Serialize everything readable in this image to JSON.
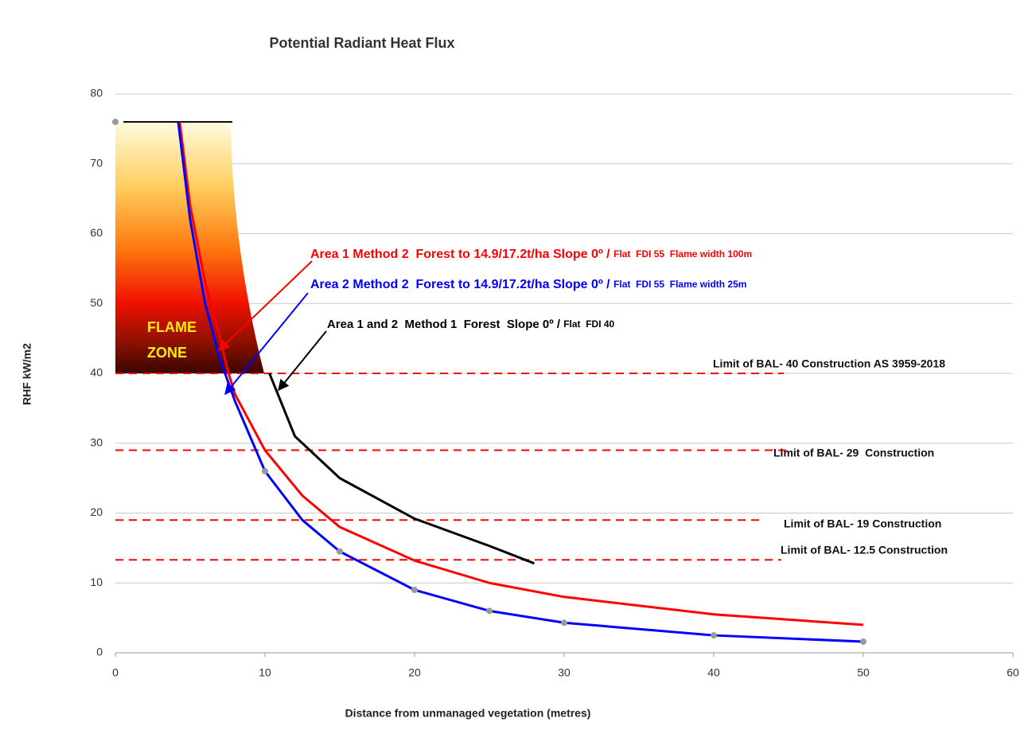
{
  "chart_data": {
    "type": "line",
    "title": "Potential Radiant Heat Flux",
    "x_label": "Distance from unmanaged vegetation (metres)",
    "y_label": "RHF kW/m2",
    "xlim": [
      0,
      60
    ],
    "xticks": [
      0,
      10,
      20,
      30,
      40,
      50,
      60
    ],
    "ylim": [
      0,
      80
    ],
    "yticks": [
      0,
      10,
      20,
      30,
      40,
      50,
      60,
      70,
      80
    ],
    "grid": true,
    "series": [
      {
        "color": "#ff0000",
        "show_line": true,
        "x": [
          4.3,
          5,
          6,
          7,
          7.5,
          8,
          10,
          12.5,
          15,
          20,
          25,
          30,
          40,
          50
        ],
        "values": [
          76,
          64,
          53,
          45,
          40.5,
          37,
          29,
          22.5,
          18,
          13.2,
          10,
          8,
          5.5,
          4
        ]
      },
      {
        "color": "#0000ff",
        "show_line": true,
        "x": [
          4.2,
          5,
          6,
          7,
          8,
          10,
          12.5,
          15,
          20,
          25,
          30,
          40,
          50
        ],
        "values": [
          76,
          62,
          50,
          42,
          36,
          26,
          19,
          14.5,
          9,
          6,
          4.3,
          2.5,
          1.6
        ]
      },
      {
        "color": "#000000",
        "show_line": true,
        "x": [
          10.3,
          12,
          15,
          20,
          25,
          28
        ],
        "values": [
          40,
          31,
          25,
          19.2,
          15.3,
          12.8
        ]
      },
      {
        "color": "#999999",
        "show_line": false,
        "x": [
          0,
          10,
          15,
          20,
          25,
          30,
          40,
          50
        ],
        "values": [
          76,
          26,
          14.5,
          9,
          6,
          4.3,
          2.5,
          1.6
        ]
      }
    ],
    "flame_zone": {
      "label_lines": [
        "FLAME",
        "ZONE"
      ],
      "top": 76,
      "bottom": 40
    },
    "reference_lines": [
      {
        "value": 40,
        "label": "Limit of BAL- 40 Construction AS 3959-2018"
      },
      {
        "value": 29,
        "label": "Limit of BAL- 29  Construction"
      },
      {
        "value": 19,
        "label": "Limit of BAL- 19 Construction"
      },
      {
        "value": 13.3,
        "label": "Limit of BAL- 12.5 Construction"
      }
    ],
    "annotations": [
      {
        "text": "Area 1 Method 2  Forest to 14.9/17.2t/ha Slope 0º / ",
        "detail": "Flat  FDI 55  Flame width 100m",
        "color": "#ff0000"
      },
      {
        "text": "Area 2 Method 2  Forest to 14.9/17.2t/ha Slope 0º / ",
        "detail": "Flat  FDI 55  Flame width 25m",
        "color": "#0000ff"
      },
      {
        "text": "Area 1 and 2  Method 1  Forest  Slope 0º / ",
        "detail": "Flat  FDI 40",
        "color": "#000000"
      }
    ]
  }
}
